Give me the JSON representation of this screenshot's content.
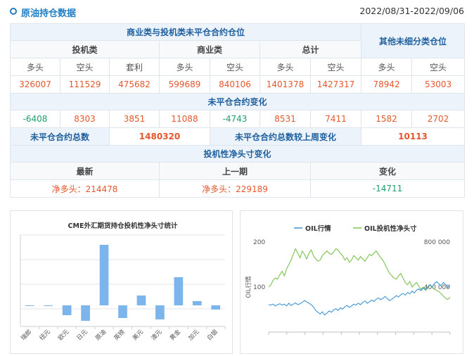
{
  "header": {
    "title": "原油持仓数据",
    "date_range": "2022/08/31-2022/09/06"
  },
  "cot_table": {
    "group_commercial": "商业类与投机类未平仓合约仓位",
    "group_other": "其他未细分类仓位",
    "cat_spec": "投机类",
    "cat_comm": "商业类",
    "cat_total": "总计",
    "cols": [
      "多头",
      "空头",
      "套利",
      "多头",
      "空头",
      "多头",
      "空头",
      "多头",
      "空头"
    ],
    "positions": [
      "326007",
      "111529",
      "475682",
      "599689",
      "840106",
      "1401378",
      "1427317",
      "78942",
      "53003"
    ],
    "change_title": "未平仓合约变化",
    "changes": [
      "-6408",
      "8303",
      "3851",
      "11088",
      "-4743",
      "8531",
      "7411",
      "1582",
      "2702"
    ],
    "oi_total_label": "未平仓合约总数",
    "oi_total_value": "1480320",
    "oi_change_label": "未平仓合约总数较上周变化",
    "oi_change_value": "10113",
    "net_title": "投机性净头寸变化",
    "net_latest_label": "最新",
    "net_prev_label": "上一期",
    "net_change_label": "变化",
    "net_latest": "净多头：214478",
    "net_prev": "净多头：229189",
    "net_change": "-14711"
  },
  "chart_data": [
    {
      "type": "bar",
      "title": "CME外汇期货持仓投机性净头寸统计",
      "categories": [
        "瑞郎",
        "纽元",
        "欧元",
        "日元",
        "原油",
        "英镑",
        "美元",
        "澳元",
        "黄金",
        "加元",
        "白银"
      ],
      "values": [
        -0.5,
        -0.5,
        -14,
        -22,
        86,
        -18,
        14,
        -20,
        40,
        6,
        -6
      ],
      "grid": true
    },
    {
      "type": "line",
      "legend": [
        "OIL行情",
        "OIL投机性净头寸"
      ],
      "legend_position": "top",
      "y_left_label": "OIL行情",
      "y_left_ticks": [
        "200",
        "100"
      ],
      "y_right_ticks": [
        "800 000",
        "400 000"
      ],
      "ylim_left": [
        0,
        200
      ],
      "ylim_right": [
        0,
        800000
      ],
      "series": [
        {
          "name": "OIL行情",
          "color": "#3d97d6",
          "values": [
            61,
            60,
            62,
            58,
            61,
            63,
            60,
            62,
            58,
            64,
            59,
            62,
            65,
            61,
            63,
            66,
            70,
            67,
            64,
            61,
            56,
            48,
            44,
            40,
            45,
            38,
            42,
            47,
            44,
            49,
            52,
            48,
            54,
            51,
            56,
            59,
            55,
            58,
            62,
            60,
            64,
            61,
            66,
            69,
            64,
            67,
            71,
            68,
            73,
            76,
            72,
            75,
            79,
            74,
            70,
            73,
            77,
            81,
            78,
            83,
            86,
            82,
            88,
            85,
            91,
            87,
            93,
            96,
            92,
            98,
            94,
            101,
            105,
            100,
            108,
            112,
            107,
            103,
            110,
            106,
            99,
            104
          ]
        },
        {
          "name": "OIL投机性净头寸",
          "color": "#7cc24e",
          "values": [
            400000,
            420000,
            460000,
            480000,
            470000,
            510000,
            540000,
            500000,
            560000,
            600000,
            640000,
            690000,
            740000,
            700000,
            660000,
            720000,
            690000,
            650000,
            700000,
            730000,
            680000,
            650000,
            630000,
            640000,
            680000,
            700000,
            720000,
            700000,
            690000,
            710000,
            740000,
            730000,
            700000,
            680000,
            640000,
            660000,
            620000,
            640000,
            680000,
            660000,
            640000,
            670000,
            650000,
            630000,
            660000,
            690000,
            680000,
            700000,
            720000,
            690000,
            660000,
            640000,
            600000,
            560000,
            520000,
            500000,
            480000,
            470000,
            500000,
            520000,
            480000,
            440000,
            420000,
            450000,
            400000,
            420000,
            440000,
            410000,
            380000,
            400000,
            370000,
            390000,
            420000,
            400000,
            380000,
            370000,
            360000,
            340000,
            320000,
            300000,
            290000,
            310000
          ]
        }
      ]
    }
  ]
}
